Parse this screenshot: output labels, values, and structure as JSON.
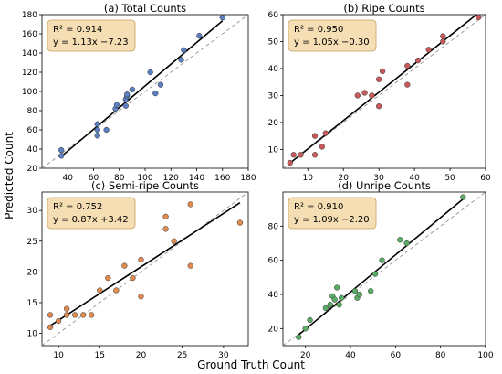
{
  "figure": {
    "xlabel": "Ground Truth Count",
    "ylabel": "Predicted Count"
  },
  "colors": {
    "annotation_fill": "#f5deb3",
    "annotation_stroke": "#c8a060",
    "fit_line": "#000000",
    "identity_line": "#888888"
  },
  "chart_data": [
    {
      "type": "scatter",
      "title": "(a) Total Counts",
      "annotation": [
        "R² = 0.914",
        "y = 1.13x −7.23"
      ],
      "color": "#5b7fc0",
      "xlim": [
        20,
        180
      ],
      "ylim": [
        20,
        180
      ],
      "xticks": [
        40,
        60,
        80,
        100,
        120,
        140,
        160,
        180
      ],
      "yticks": [
        20,
        40,
        60,
        80,
        100,
        120,
        140,
        160,
        180
      ],
      "fit": {
        "slope": 1.13,
        "intercept": -7.23
      },
      "x": [
        35,
        35,
        63,
        63,
        63,
        70,
        77,
        78,
        85,
        85,
        86,
        86,
        90,
        104,
        108,
        112,
        128,
        130,
        142,
        160
      ],
      "y": [
        33,
        39,
        54,
        60,
        66,
        60,
        82,
        86,
        85,
        92,
        95,
        97,
        102,
        120,
        98,
        107,
        133,
        143,
        158,
        177
      ]
    },
    {
      "type": "scatter",
      "title": "(b) Ripe Counts",
      "annotation": [
        "R² = 0.950",
        "y = 1.05x −0.30"
      ],
      "color": "#c85a5a",
      "xlim": [
        3,
        60
      ],
      "ylim": [
        3,
        60
      ],
      "xticks": [
        10,
        20,
        30,
        40,
        50,
        60
      ],
      "yticks": [
        10,
        20,
        30,
        40,
        50,
        60
      ],
      "fit": {
        "slope": 1.05,
        "intercept": -0.3
      },
      "x": [
        5,
        6,
        8,
        12,
        12,
        14,
        15,
        24,
        26,
        28,
        30,
        30,
        31,
        38,
        38,
        41,
        44,
        48,
        48,
        58
      ],
      "y": [
        5,
        8,
        8,
        8,
        15,
        11,
        16,
        30,
        31,
        30,
        36,
        26,
        39,
        34,
        41,
        43,
        47,
        50,
        52,
        59
      ]
    },
    {
      "type": "scatter",
      "title": "(c) Semi-ripe Counts",
      "annotation": [
        "R² = 0.752",
        "y = 0.87x +3.42"
      ],
      "color": "#e08a50",
      "xlim": [
        8,
        33
      ],
      "ylim": [
        8,
        33
      ],
      "xticks": [
        10,
        15,
        20,
        25,
        30
      ],
      "yticks": [
        10,
        15,
        20,
        25,
        30
      ],
      "fit": {
        "slope": 0.87,
        "intercept": 3.42
      },
      "x": [
        9,
        9,
        10,
        11,
        11,
        12,
        13,
        14,
        15,
        16,
        17,
        18,
        19,
        20,
        20,
        23,
        23,
        24,
        26,
        26,
        32
      ],
      "y": [
        11,
        13,
        12,
        13,
        14,
        13,
        13,
        13,
        17,
        19,
        17,
        21,
        19,
        16,
        22,
        27,
        29,
        25,
        31,
        21,
        28
      ]
    },
    {
      "type": "scatter",
      "title": "(d) Unripe Counts",
      "annotation": [
        "R² = 0.910",
        "y = 1.09x −2.20"
      ],
      "color": "#5aab66",
      "xlim": [
        10,
        100
      ],
      "ylim": [
        10,
        100
      ],
      "xticks": [
        20,
        40,
        60,
        80,
        100
      ],
      "yticks": [
        20,
        40,
        60,
        80
      ],
      "fit": {
        "slope": 1.09,
        "intercept": -2.2
      },
      "x": [
        17,
        20,
        22,
        29,
        31,
        32,
        33,
        34,
        35,
        36,
        42,
        43,
        44,
        49,
        51,
        54,
        62,
        65,
        90
      ],
      "y": [
        15,
        20,
        25,
        32,
        34,
        39,
        37,
        44,
        34,
        38,
        42,
        38,
        40,
        42,
        52,
        60,
        72,
        70,
        97
      ]
    }
  ]
}
